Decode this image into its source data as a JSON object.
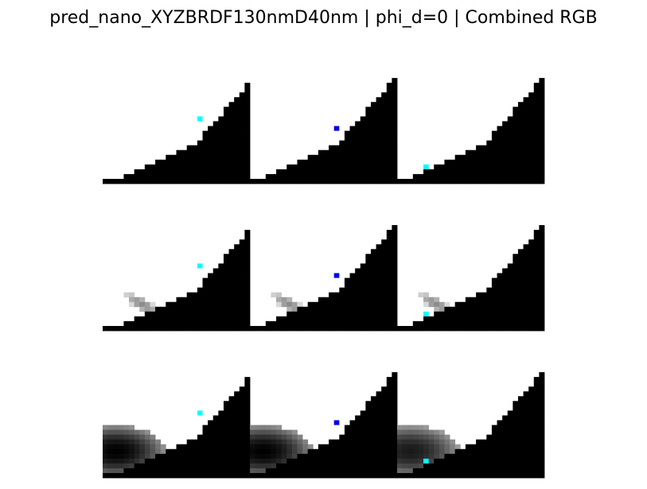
{
  "title": "pred_nano_XYZBRDF130nmD40nm | phi_d=0 | Combined RGB",
  "colors": {
    "background": "#ffffff",
    "mask": "#000000",
    "marker_cyan": "#00ffff",
    "marker_blue": "#0000e6"
  },
  "chart_data": {
    "type": "image_grid",
    "title": "pred_nano_XYZBRDF130nmD40nm | phi_d=0 | Combined RGB",
    "rows": 3,
    "cols": 3,
    "axes": "off",
    "panel_pixels": [
      28,
      24
    ],
    "panels": [
      {
        "row": 0,
        "col": 0,
        "marker": {
          "color": "cyan",
          "cell": [
            18,
            10
          ]
        },
        "intensity": 0.0
      },
      {
        "row": 0,
        "col": 1,
        "marker": {
          "color": "blue",
          "cell": [
            16,
            12
          ]
        },
        "intensity": 0.0
      },
      {
        "row": 0,
        "col": 2,
        "marker": {
          "color": "cyan",
          "cell": [
            5,
            20
          ]
        },
        "intensity": 0.0
      },
      {
        "row": 1,
        "col": 0,
        "marker": {
          "color": "cyan",
          "cell": [
            18,
            10
          ]
        },
        "intensity": 0.45
      },
      {
        "row": 1,
        "col": 1,
        "marker": {
          "color": "blue",
          "cell": [
            16,
            12
          ]
        },
        "intensity": 0.45
      },
      {
        "row": 1,
        "col": 2,
        "marker": {
          "color": "cyan",
          "cell": [
            5,
            20
          ]
        },
        "intensity": 0.45
      },
      {
        "row": 2,
        "col": 0,
        "marker": {
          "color": "cyan",
          "cell": [
            18,
            10
          ]
        },
        "intensity": 1.0
      },
      {
        "row": 2,
        "col": 1,
        "marker": {
          "color": "blue",
          "cell": [
            16,
            12
          ]
        },
        "intensity": 1.0
      },
      {
        "row": 2,
        "col": 2,
        "marker": {
          "color": "cyan",
          "cell": [
            5,
            20
          ]
        },
        "intensity": 0.9
      }
    ]
  }
}
